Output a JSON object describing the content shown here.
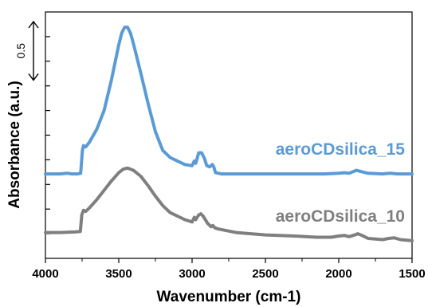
{
  "chart_data": {
    "type": "line",
    "xlabel": "Wavenumber (cm-1)",
    "ylabel": "Absorbance (a.u.)",
    "xlim": [
      4000,
      1500
    ],
    "x_reversed": true,
    "x_ticks": [
      "4000",
      "3500",
      "3000",
      "2500",
      "2000",
      "1500"
    ],
    "y_ticks_labeled": false,
    "grid": false,
    "scale_bar": {
      "label": "0.5",
      "value": 0.5
    },
    "ylim": [
      0,
      2.1
    ],
    "series": [
      {
        "name": "aeroCDsilica_15",
        "color": "#5b9bd5",
        "points": [
          [
            4000,
            0.72
          ],
          [
            3900,
            0.72
          ],
          [
            3850,
            0.725
          ],
          [
            3820,
            0.72
          ],
          [
            3780,
            0.72
          ],
          [
            3760,
            0.725
          ],
          [
            3748,
            0.92
          ],
          [
            3740,
            0.96
          ],
          [
            3725,
            0.95
          ],
          [
            3700,
            0.99
          ],
          [
            3650,
            1.1
          ],
          [
            3600,
            1.26
          ],
          [
            3550,
            1.52
          ],
          [
            3500,
            1.82
          ],
          [
            3480,
            1.92
          ],
          [
            3460,
            1.97
          ],
          [
            3440,
            1.97
          ],
          [
            3420,
            1.92
          ],
          [
            3400,
            1.83
          ],
          [
            3350,
            1.58
          ],
          [
            3300,
            1.32
          ],
          [
            3250,
            1.08
          ],
          [
            3200,
            0.92
          ],
          [
            3150,
            0.86
          ],
          [
            3100,
            0.83
          ],
          [
            3050,
            0.8
          ],
          [
            3000,
            0.79
          ],
          [
            2985,
            0.83
          ],
          [
            2975,
            0.81
          ],
          [
            2955,
            0.9
          ],
          [
            2935,
            0.9
          ],
          [
            2915,
            0.85
          ],
          [
            2900,
            0.79
          ],
          [
            2880,
            0.78
          ],
          [
            2862,
            0.8
          ],
          [
            2852,
            0.78
          ],
          [
            2840,
            0.73
          ],
          [
            2800,
            0.72
          ],
          [
            2500,
            0.72
          ],
          [
            2100,
            0.72
          ],
          [
            2000,
            0.725
          ],
          [
            1960,
            0.73
          ],
          [
            1930,
            0.725
          ],
          [
            1880,
            0.75
          ],
          [
            1850,
            0.74
          ],
          [
            1800,
            0.725
          ],
          [
            1700,
            0.72
          ],
          [
            1650,
            0.725
          ],
          [
            1600,
            0.72
          ],
          [
            1500,
            0.72
          ]
        ]
      },
      {
        "name": "aeroCDsilica_10",
        "color": "#7f7f7f",
        "points": [
          [
            4000,
            0.22
          ],
          [
            3900,
            0.22
          ],
          [
            3800,
            0.225
          ],
          [
            3762,
            0.23
          ],
          [
            3752,
            0.37
          ],
          [
            3740,
            0.41
          ],
          [
            3725,
            0.4
          ],
          [
            3700,
            0.43
          ],
          [
            3650,
            0.5
          ],
          [
            3600,
            0.58
          ],
          [
            3550,
            0.66
          ],
          [
            3500,
            0.73
          ],
          [
            3470,
            0.76
          ],
          [
            3440,
            0.77
          ],
          [
            3400,
            0.75
          ],
          [
            3350,
            0.7
          ],
          [
            3300,
            0.62
          ],
          [
            3250,
            0.53
          ],
          [
            3200,
            0.45
          ],
          [
            3150,
            0.39
          ],
          [
            3100,
            0.36
          ],
          [
            3050,
            0.33
          ],
          [
            3000,
            0.31
          ],
          [
            2985,
            0.35
          ],
          [
            2975,
            0.33
          ],
          [
            2955,
            0.37
          ],
          [
            2940,
            0.38
          ],
          [
            2925,
            0.36
          ],
          [
            2910,
            0.33
          ],
          [
            2895,
            0.3
          ],
          [
            2870,
            0.27
          ],
          [
            2858,
            0.28
          ],
          [
            2845,
            0.26
          ],
          [
            2820,
            0.25
          ],
          [
            2700,
            0.22
          ],
          [
            2500,
            0.2
          ],
          [
            2300,
            0.19
          ],
          [
            2150,
            0.18
          ],
          [
            2050,
            0.18
          ],
          [
            2000,
            0.19
          ],
          [
            1960,
            0.195
          ],
          [
            1930,
            0.185
          ],
          [
            1890,
            0.2
          ],
          [
            1870,
            0.21
          ],
          [
            1840,
            0.195
          ],
          [
            1800,
            0.17
          ],
          [
            1700,
            0.16
          ],
          [
            1660,
            0.17
          ],
          [
            1620,
            0.175
          ],
          [
            1580,
            0.16
          ],
          [
            1500,
            0.15
          ]
        ]
      }
    ]
  }
}
